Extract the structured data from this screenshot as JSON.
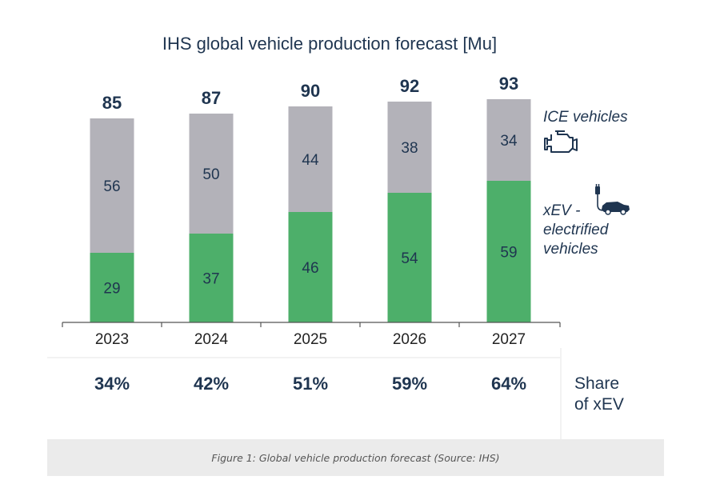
{
  "chart_data": {
    "type": "bar",
    "stacked": true,
    "title": "IHS global vehicle production forecast [Mu]",
    "categories": [
      "2023",
      "2024",
      "2025",
      "2026",
      "2027"
    ],
    "series": [
      {
        "name": "xEV - electrified vehicles",
        "values": [
          29,
          37,
          46,
          54,
          59
        ]
      },
      {
        "name": "ICE vehicles",
        "values": [
          56,
          50,
          44,
          38,
          34
        ]
      }
    ],
    "totals": [
      85,
      87,
      90,
      92,
      93
    ],
    "share": {
      "label": "Share of xEV",
      "values": [
        "34%",
        "42%",
        "51%",
        "59%",
        "64%"
      ]
    },
    "legend": {
      "ice": "ICE vehicles",
      "xev_lines": [
        "xEV -",
        "electrified",
        "vehicles"
      ]
    },
    "ylim": [
      0,
      100
    ],
    "grid": false,
    "legend_placement": "right",
    "colors": {
      "xev": "#4daf6a",
      "ice": "#b3b2b9",
      "text": "#1f3550",
      "axis": "#555555"
    },
    "icons": {
      "ice": "engine-icon",
      "xev": "electric-car-plug-icon"
    }
  },
  "caption": "Figure 1: Global vehicle production forecast (Source: IHS)"
}
